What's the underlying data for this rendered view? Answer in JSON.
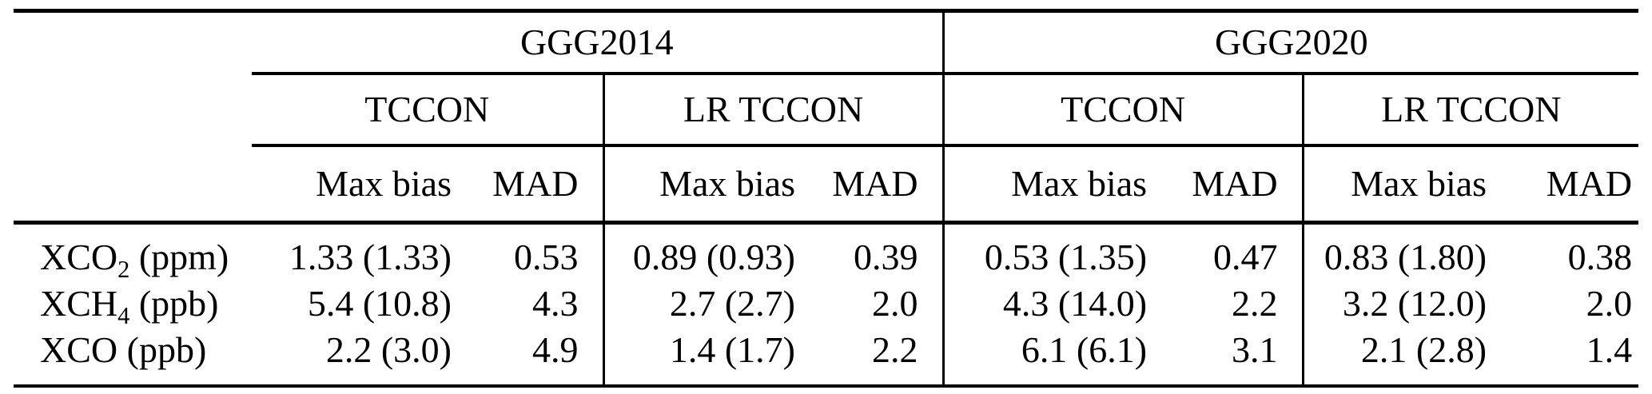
{
  "table": {
    "groups": [
      "GGG2014",
      "GGG2020"
    ],
    "subgroups": [
      "TCCON",
      "LR TCCON",
      "TCCON",
      "LR TCCON"
    ],
    "metrics": [
      "Max bias",
      "MAD",
      "Max bias",
      "MAD",
      "Max bias",
      "MAD",
      "Max bias",
      "MAD"
    ],
    "rows": [
      {
        "label": {
          "main": "XCO",
          "sub": "2",
          "unit": "(ppm)"
        },
        "values": [
          "1.33 (1.33)",
          "0.53",
          "0.89 (0.93)",
          "0.39",
          "0.53 (1.35)",
          "0.47",
          "0.83 (1.80)",
          "0.38"
        ]
      },
      {
        "label": {
          "main": "XCH",
          "sub": "4",
          "unit": "(ppb)"
        },
        "values": [
          "5.4 (10.8)",
          "4.3",
          "2.7 (2.7)",
          "2.0",
          "4.3 (14.0)",
          "2.2",
          "3.2 (12.0)",
          "2.0"
        ]
      },
      {
        "label": {
          "main": "XCO",
          "sub": "",
          "unit": "(ppb)"
        },
        "values": [
          "2.2 (3.0)",
          "4.9",
          "1.4 (1.7)",
          "2.2",
          "6.1 (6.1)",
          "3.1",
          "2.1 (2.8)",
          "1.4"
        ]
      }
    ]
  },
  "chart_data": {
    "type": "table",
    "column_groups": [
      "GGG2014",
      "GGG2020"
    ],
    "column_subgroups": [
      "TCCON",
      "LR TCCON",
      "TCCON",
      "LR TCCON"
    ],
    "columns": [
      "Max bias",
      "MAD",
      "Max bias",
      "MAD",
      "Max bias",
      "MAD",
      "Max bias",
      "MAD"
    ],
    "row_labels": [
      "XCO2 (ppm)",
      "XCH4 (ppb)",
      "XCO (ppb)"
    ],
    "rows": [
      [
        "1.33 (1.33)",
        "0.53",
        "0.89 (0.93)",
        "0.39",
        "0.53 (1.35)",
        "0.47",
        "0.83 (1.80)",
        "0.38"
      ],
      [
        "5.4 (10.8)",
        "4.3",
        "2.7 (2.7)",
        "2.0",
        "4.3 (14.0)",
        "2.2",
        "3.2 (12.0)",
        "2.0"
      ],
      [
        "2.2 (3.0)",
        "4.9",
        "1.4 (1.7)",
        "2.2",
        "6.1 (6.1)",
        "3.1",
        "2.1 (2.8)",
        "1.4"
      ]
    ]
  }
}
